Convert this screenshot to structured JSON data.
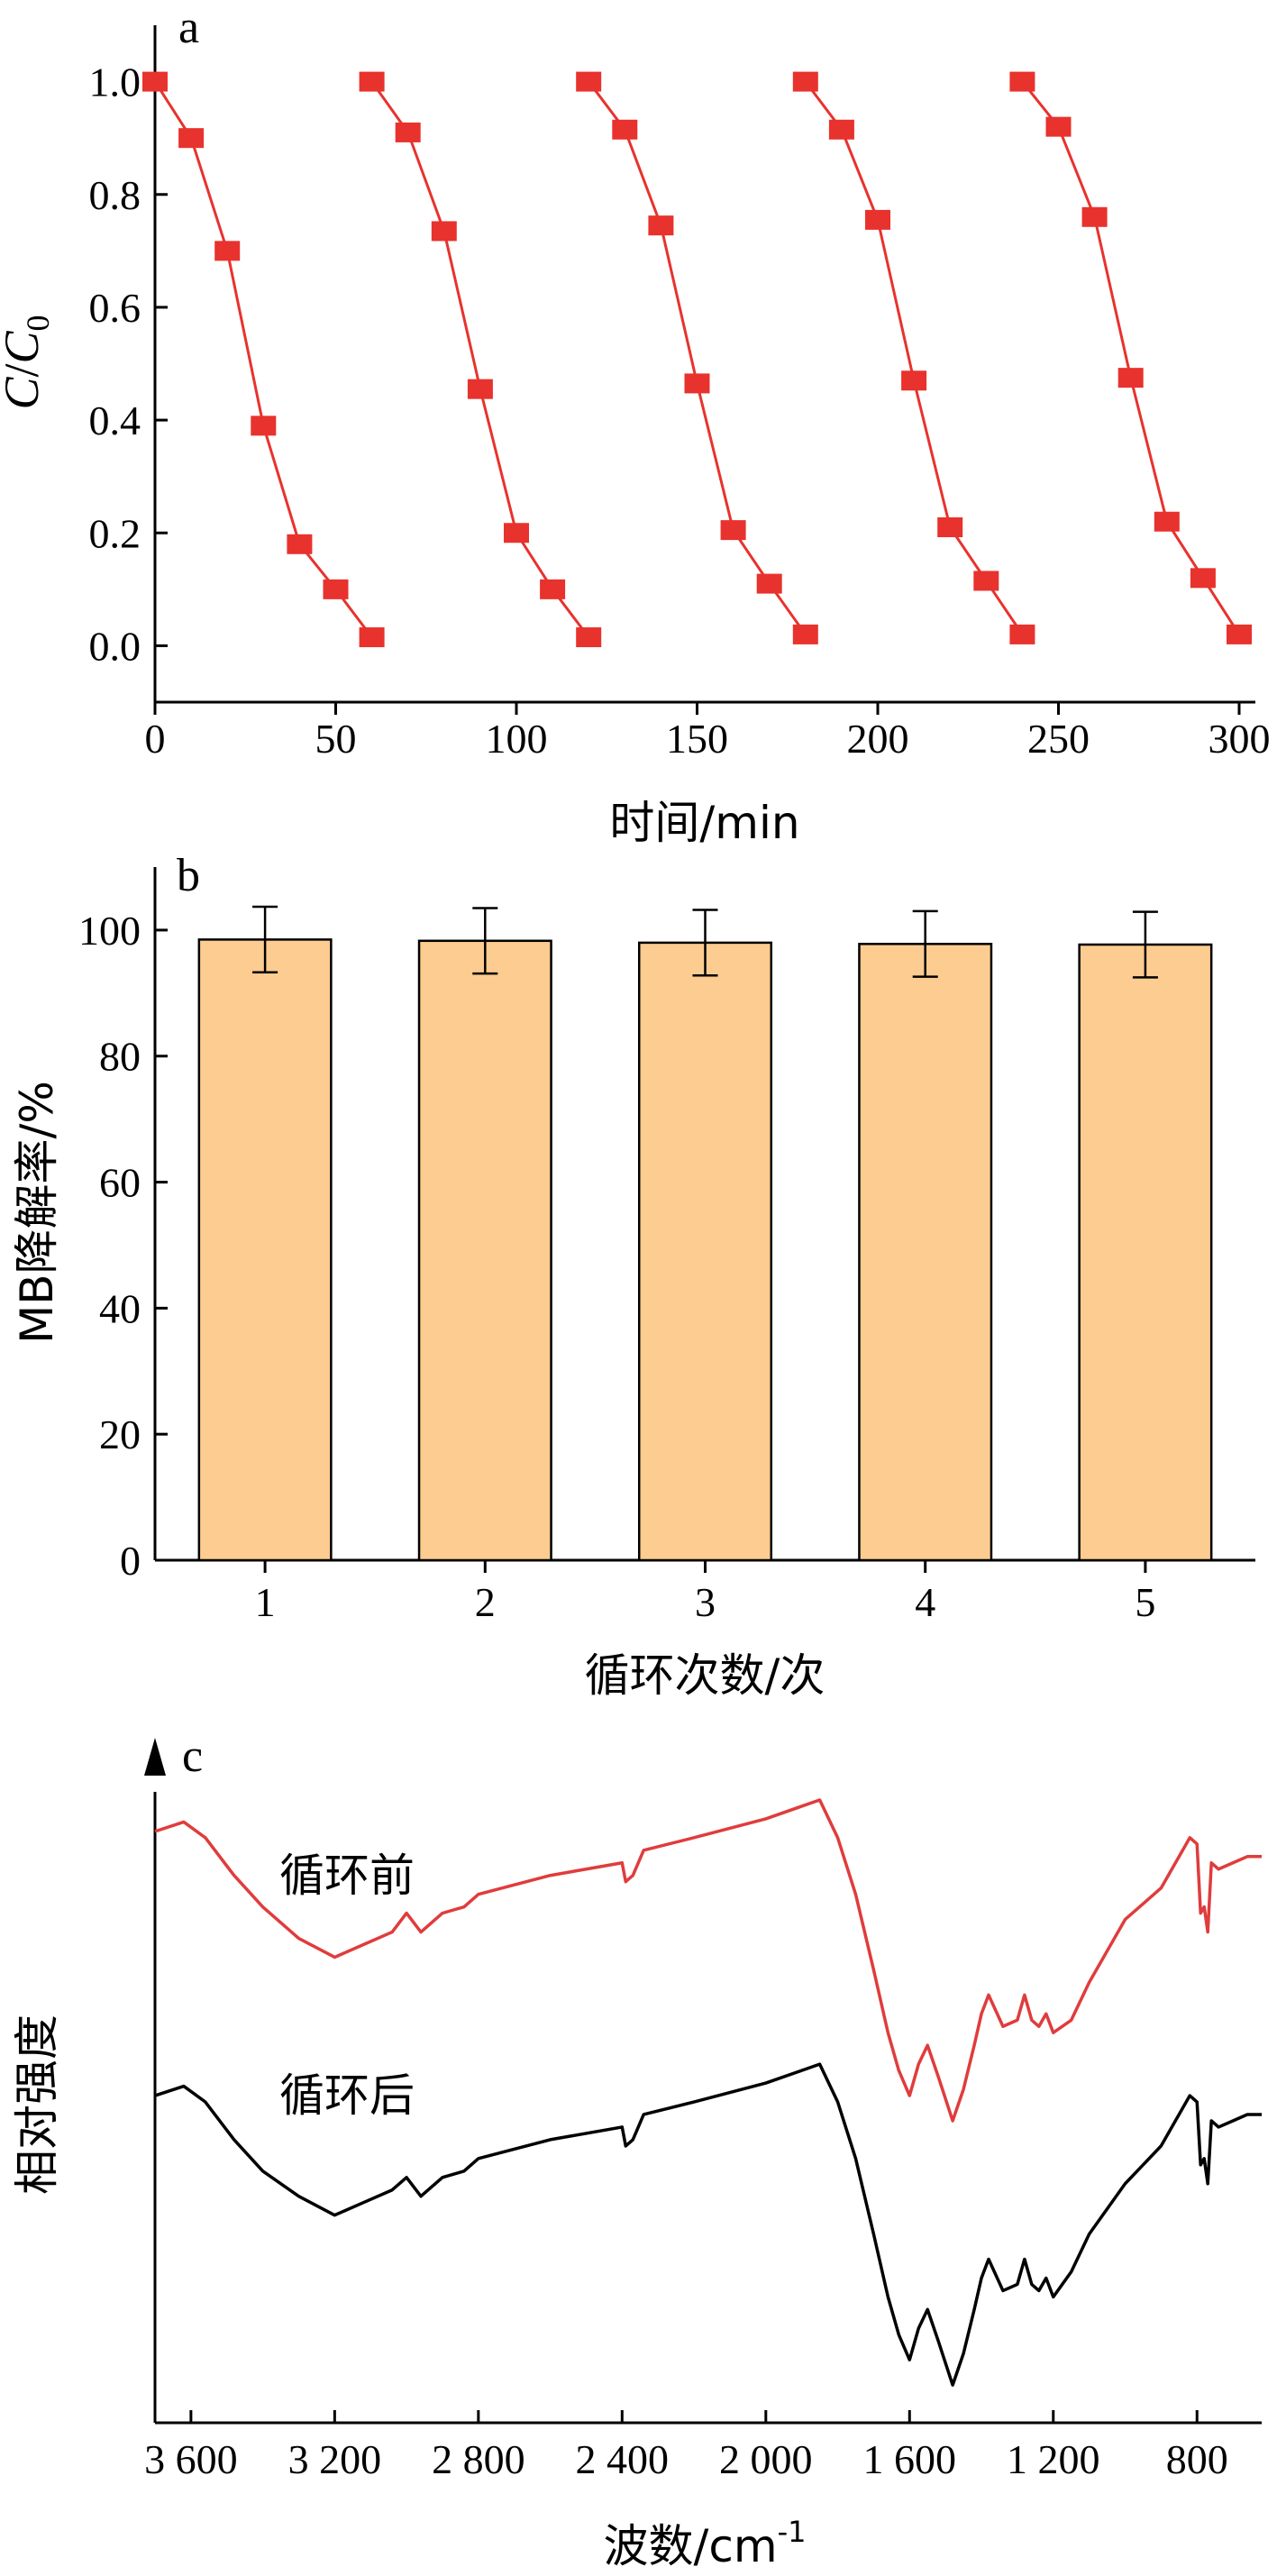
{
  "chart_data": [
    {
      "panel": "a",
      "type": "line",
      "xlabel": "时间/min",
      "ylabel_italic": "C",
      "ylabel_sep": "/",
      "ylabel_italic2": "C",
      "ylabel_sub": "0",
      "xlim": [
        0,
        300
      ],
      "ylim": [
        -0.1,
        1.1
      ],
      "xticks": [
        "0",
        "50",
        "100",
        "150",
        "200",
        "250",
        "300"
      ],
      "yticks": [
        "0.0",
        "0.2",
        "0.4",
        "0.6",
        "0.8",
        "1.0"
      ],
      "marker_color": "#e8322d",
      "series": [
        {
          "x": [
            0,
            10,
            20,
            30,
            40,
            50,
            60
          ],
          "y": [
            1.0,
            0.9,
            0.7,
            0.39,
            0.18,
            0.1,
            0.015
          ]
        },
        {
          "x": [
            60,
            70,
            80,
            90,
            100,
            110,
            120
          ],
          "y": [
            1.0,
            0.91,
            0.735,
            0.455,
            0.2,
            0.1,
            0.015
          ]
        },
        {
          "x": [
            120,
            130,
            140,
            150,
            160,
            170,
            180
          ],
          "y": [
            1.0,
            0.915,
            0.745,
            0.465,
            0.205,
            0.11,
            0.02
          ]
        },
        {
          "x": [
            180,
            190,
            200,
            210,
            220,
            230,
            240
          ],
          "y": [
            1.0,
            0.915,
            0.755,
            0.47,
            0.21,
            0.115,
            0.02
          ]
        },
        {
          "x": [
            240,
            250,
            260,
            270,
            280,
            290,
            300
          ],
          "y": [
            1.0,
            0.92,
            0.76,
            0.475,
            0.22,
            0.12,
            0.02
          ]
        }
      ]
    },
    {
      "panel": "b",
      "type": "bar",
      "xlabel": "循环次数/次",
      "ylabel": "MB降解率/%",
      "categories": [
        "1",
        "2",
        "3",
        "4",
        "5"
      ],
      "values": [
        98.5,
        98.3,
        98.0,
        97.8,
        97.7
      ],
      "errors": [
        5.2,
        5.2,
        5.2,
        5.2,
        5.2
      ],
      "ylim": [
        0,
        110
      ],
      "yticks": [
        "0",
        "20",
        "40",
        "60",
        "80",
        "100"
      ],
      "bar_color": "#fccc90"
    },
    {
      "panel": "c",
      "type": "line",
      "xlabel_main": "波数/cm",
      "xlabel_sup": "-1",
      "ylabel": "相对强度",
      "xlim": [
        3700,
        620
      ],
      "xticks": [
        {
          "v": 3600,
          "label": "3 600"
        },
        {
          "v": 3200,
          "label": "3 200"
        },
        {
          "v": 2800,
          "label": "2 800"
        },
        {
          "v": 2400,
          "label": "2 400"
        },
        {
          "v": 2000,
          "label": "2 000"
        },
        {
          "v": 1600,
          "label": "1 600"
        },
        {
          "v": 1200,
          "label": "1 200"
        },
        {
          "v": 800,
          "label": "800"
        }
      ],
      "series": [
        {
          "name": "循环前",
          "color": "#e03c3c",
          "x": [
            3700,
            3620,
            3560,
            3480,
            3400,
            3300,
            3200,
            3120,
            3040,
            3000,
            2960,
            2900,
            2840,
            2800,
            2600,
            2400,
            2390,
            2370,
            2340,
            2200,
            2000,
            1900,
            1850,
            1800,
            1750,
            1700,
            1660,
            1630,
            1600,
            1575,
            1550,
            1520,
            1480,
            1450,
            1420,
            1400,
            1380,
            1340,
            1300,
            1280,
            1260,
            1240,
            1220,
            1200,
            1150,
            1100,
            1000,
            900,
            820,
            800,
            790,
            780,
            770,
            760,
            740,
            700,
            660,
            620
          ],
          "y": [
            0.94,
            0.955,
            0.93,
            0.87,
            0.82,
            0.77,
            0.74,
            0.76,
            0.78,
            0.81,
            0.78,
            0.81,
            0.82,
            0.84,
            0.87,
            0.89,
            0.86,
            0.87,
            0.91,
            0.93,
            0.96,
            0.98,
            0.99,
            0.93,
            0.84,
            0.72,
            0.62,
            0.56,
            0.52,
            0.57,
            0.6,
            0.55,
            0.48,
            0.53,
            0.6,
            0.65,
            0.68,
            0.63,
            0.64,
            0.68,
            0.64,
            0.63,
            0.65,
            0.62,
            0.64,
            0.7,
            0.8,
            0.85,
            0.93,
            0.92,
            0.81,
            0.82,
            0.78,
            0.89,
            0.88,
            0.89,
            0.9,
            0.9
          ]
        },
        {
          "name": "循环后",
          "color": "#000000",
          "x": [
            3700,
            3620,
            3560,
            3480,
            3400,
            3300,
            3200,
            3120,
            3040,
            3000,
            2960,
            2900,
            2840,
            2800,
            2600,
            2400,
            2390,
            2370,
            2340,
            2200,
            2000,
            1900,
            1850,
            1800,
            1750,
            1700,
            1660,
            1630,
            1600,
            1575,
            1550,
            1520,
            1480,
            1450,
            1420,
            1400,
            1380,
            1340,
            1300,
            1280,
            1260,
            1240,
            1220,
            1200,
            1150,
            1100,
            1000,
            900,
            820,
            800,
            790,
            780,
            770,
            760,
            740,
            700,
            660,
            620
          ],
          "y": [
            0.52,
            0.535,
            0.51,
            0.45,
            0.4,
            0.36,
            0.33,
            0.35,
            0.37,
            0.39,
            0.36,
            0.39,
            0.4,
            0.42,
            0.45,
            0.47,
            0.44,
            0.45,
            0.49,
            0.51,
            0.54,
            0.56,
            0.57,
            0.51,
            0.42,
            0.3,
            0.2,
            0.14,
            0.1,
            0.15,
            0.18,
            0.13,
            0.06,
            0.11,
            0.18,
            0.23,
            0.26,
            0.21,
            0.22,
            0.26,
            0.22,
            0.21,
            0.23,
            0.2,
            0.24,
            0.3,
            0.38,
            0.44,
            0.52,
            0.51,
            0.41,
            0.42,
            0.38,
            0.48,
            0.47,
            0.48,
            0.49,
            0.49
          ]
        }
      ]
    }
  ]
}
